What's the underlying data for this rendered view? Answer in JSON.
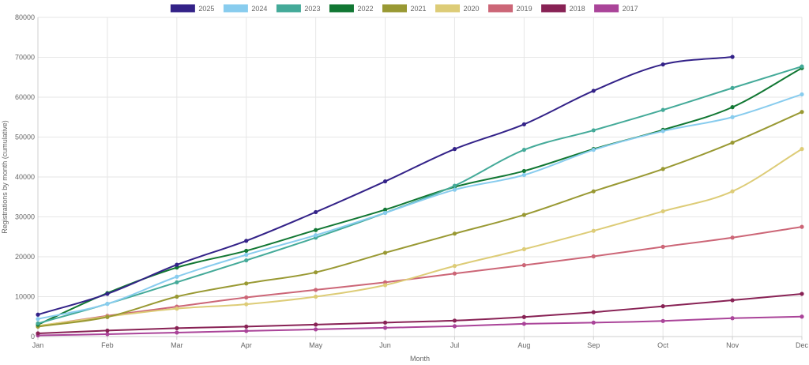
{
  "chart_data": {
    "type": "line",
    "title": "",
    "xlabel": "Month",
    "ylabel": "Registrations by month (cumulative)",
    "categories": [
      "Jan",
      "Feb",
      "Mar",
      "Apr",
      "May",
      "Jun",
      "Jul",
      "Aug",
      "Sep",
      "Oct",
      "Nov",
      "Dec"
    ],
    "ylim": [
      0,
      80000
    ],
    "yticks": [
      "0",
      "10000",
      "20000",
      "30000",
      "40000",
      "50000",
      "60000",
      "70000",
      "80000"
    ],
    "grid": true,
    "legend_position": "top",
    "series": [
      {
        "name": "2025",
        "color": "#332288",
        "values": [
          5500,
          10700,
          18000,
          24000,
          31200,
          38900,
          47000,
          53200,
          61600,
          68200,
          70100,
          null
        ]
      },
      {
        "name": "2024",
        "color": "#88ccee",
        "values": [
          4400,
          8200,
          15000,
          20500,
          25400,
          31000,
          36800,
          40500,
          46800,
          51500,
          55000,
          60700
        ]
      },
      {
        "name": "2023",
        "color": "#44aa99",
        "values": [
          3300,
          8200,
          13600,
          19100,
          24800,
          31000,
          37800,
          46800,
          51700,
          56800,
          62300,
          67700
        ]
      },
      {
        "name": "2022",
        "color": "#117733",
        "values": [
          3000,
          10900,
          17300,
          21500,
          26700,
          31800,
          37500,
          41500,
          47000,
          51800,
          57500,
          67300
        ]
      },
      {
        "name": "2021",
        "color": "#999933",
        "values": [
          2500,
          4900,
          10000,
          13300,
          16100,
          21000,
          25800,
          30500,
          36400,
          42000,
          48600,
          56300
        ]
      },
      {
        "name": "2020",
        "color": "#ddcc77",
        "values": [
          2700,
          5000,
          7000,
          8100,
          10000,
          12900,
          17700,
          21900,
          26500,
          31400,
          36400,
          47000
        ]
      },
      {
        "name": "2019",
        "color": "#cc6677",
        "values": [
          2600,
          5200,
          7500,
          9800,
          11700,
          13600,
          15800,
          17900,
          20100,
          22500,
          24800,
          27500
        ]
      },
      {
        "name": "2018",
        "color": "#882255",
        "values": [
          800,
          1500,
          2100,
          2500,
          3000,
          3500,
          4000,
          4900,
          6100,
          7600,
          9100,
          10700
        ]
      },
      {
        "name": "2017",
        "color": "#aa4499",
        "values": [
          300,
          600,
          1000,
          1400,
          1800,
          2200,
          2600,
          3200,
          3500,
          3900,
          4600,
          5000
        ]
      }
    ]
  }
}
